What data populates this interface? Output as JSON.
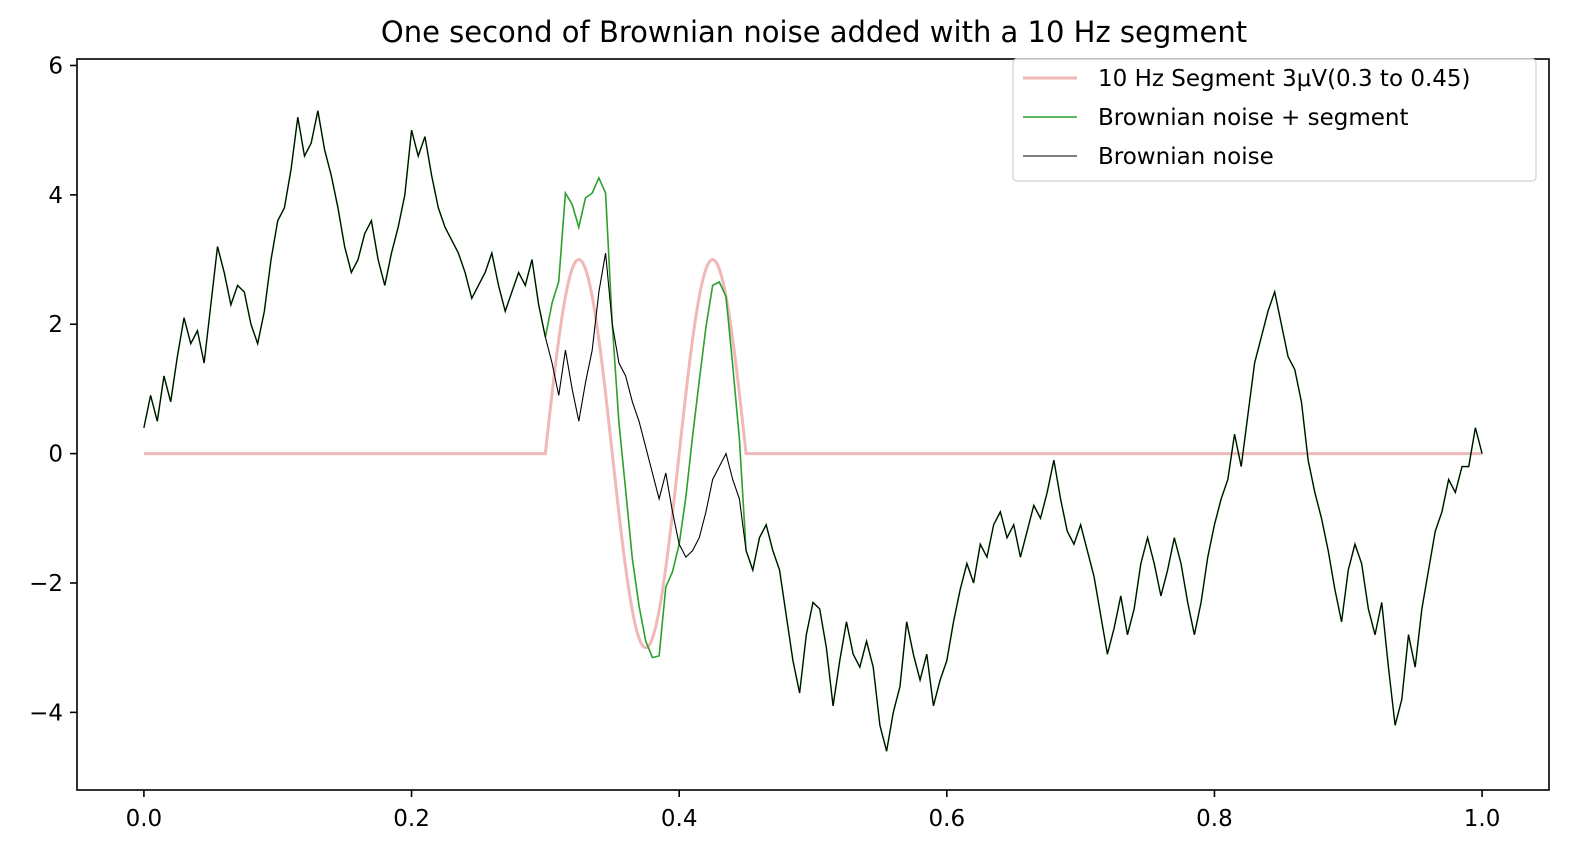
{
  "chart_data": {
    "type": "line",
    "title": "One second of Brownian noise added with a 10 Hz segment",
    "xlabel": "",
    "ylabel": "",
    "xlim": [
      -0.05,
      1.05
    ],
    "ylim": [
      -5.2,
      6.1
    ],
    "xticks": [
      0.0,
      0.2,
      0.4,
      0.6,
      0.8,
      1.0
    ],
    "xtick_labels": [
      "0.0",
      "0.2",
      "0.4",
      "0.6",
      "0.8",
      "1.0"
    ],
    "yticks": [
      -4,
      -2,
      0,
      2,
      4,
      6
    ],
    "ytick_labels": [
      "−4",
      "−2",
      "0",
      "2",
      "4",
      "6"
    ],
    "grid": false,
    "legend_position": "upper right",
    "series": [
      {
        "name": "10 Hz Segment 3μV(0.3 to 0.45)",
        "color": "#f0b8b8",
        "segment_start": 0.3,
        "segment_end": 0.45,
        "frequency_hz": 10,
        "amplitude": 3
      },
      {
        "name": "Brownian noise + segment",
        "color": "#2ca02c"
      },
      {
        "name": "Brownian noise",
        "color": "#000000",
        "points": [
          [
            0.0,
            0.4
          ],
          [
            0.005,
            0.9
          ],
          [
            0.01,
            0.5
          ],
          [
            0.015,
            1.2
          ],
          [
            0.02,
            0.8
          ],
          [
            0.025,
            1.5
          ],
          [
            0.03,
            2.1
          ],
          [
            0.035,
            1.7
          ],
          [
            0.04,
            1.9
          ],
          [
            0.045,
            1.4
          ],
          [
            0.05,
            2.3
          ],
          [
            0.055,
            3.2
          ],
          [
            0.06,
            2.8
          ],
          [
            0.065,
            2.3
          ],
          [
            0.07,
            2.6
          ],
          [
            0.075,
            2.5
          ],
          [
            0.08,
            2.0
          ],
          [
            0.085,
            1.7
          ],
          [
            0.09,
            2.2
          ],
          [
            0.095,
            3.0
          ],
          [
            0.1,
            3.6
          ],
          [
            0.105,
            3.8
          ],
          [
            0.11,
            4.4
          ],
          [
            0.115,
            5.2
          ],
          [
            0.12,
            4.6
          ],
          [
            0.125,
            4.8
          ],
          [
            0.13,
            5.3
          ],
          [
            0.135,
            4.7
          ],
          [
            0.14,
            4.3
          ],
          [
            0.145,
            3.8
          ],
          [
            0.15,
            3.2
          ],
          [
            0.155,
            2.8
          ],
          [
            0.16,
            3.0
          ],
          [
            0.165,
            3.4
          ],
          [
            0.17,
            3.6
          ],
          [
            0.175,
            3.0
          ],
          [
            0.18,
            2.6
          ],
          [
            0.185,
            3.1
          ],
          [
            0.19,
            3.5
          ],
          [
            0.195,
            4.0
          ],
          [
            0.2,
            5.0
          ],
          [
            0.205,
            4.6
          ],
          [
            0.21,
            4.9
          ],
          [
            0.215,
            4.3
          ],
          [
            0.22,
            3.8
          ],
          [
            0.225,
            3.5
          ],
          [
            0.23,
            3.3
          ],
          [
            0.235,
            3.1
          ],
          [
            0.24,
            2.8
          ],
          [
            0.245,
            2.4
          ],
          [
            0.25,
            2.6
          ],
          [
            0.255,
            2.8
          ],
          [
            0.26,
            3.1
          ],
          [
            0.265,
            2.6
          ],
          [
            0.27,
            2.2
          ],
          [
            0.275,
            2.5
          ],
          [
            0.28,
            2.8
          ],
          [
            0.285,
            2.6
          ],
          [
            0.29,
            3.0
          ],
          [
            0.295,
            2.3
          ],
          [
            0.3,
            1.8
          ],
          [
            0.305,
            1.4
          ],
          [
            0.31,
            0.9
          ],
          [
            0.315,
            1.6
          ],
          [
            0.32,
            1.0
          ],
          [
            0.325,
            0.5
          ],
          [
            0.33,
            1.1
          ],
          [
            0.335,
            1.6
          ],
          [
            0.34,
            2.5
          ],
          [
            0.345,
            3.1
          ],
          [
            0.35,
            2.0
          ],
          [
            0.355,
            1.4
          ],
          [
            0.36,
            1.2
          ],
          [
            0.365,
            0.8
          ],
          [
            0.37,
            0.5
          ],
          [
            0.375,
            0.1
          ],
          [
            0.38,
            -0.3
          ],
          [
            0.385,
            -0.7
          ],
          [
            0.39,
            -0.3
          ],
          [
            0.395,
            -0.9
          ],
          [
            0.4,
            -1.4
          ],
          [
            0.405,
            -1.6
          ],
          [
            0.41,
            -1.5
          ],
          [
            0.415,
            -1.3
          ],
          [
            0.42,
            -0.9
          ],
          [
            0.425,
            -0.4
          ],
          [
            0.43,
            -0.2
          ],
          [
            0.435,
            0.0
          ],
          [
            0.44,
            -0.4
          ],
          [
            0.445,
            -0.7
          ],
          [
            0.45,
            -1.5
          ],
          [
            0.455,
            -1.8
          ],
          [
            0.46,
            -1.3
          ],
          [
            0.465,
            -1.1
          ],
          [
            0.47,
            -1.5
          ],
          [
            0.475,
            -1.8
          ],
          [
            0.48,
            -2.5
          ],
          [
            0.485,
            -3.2
          ],
          [
            0.49,
            -3.7
          ],
          [
            0.495,
            -2.8
          ],
          [
            0.5,
            -2.3
          ],
          [
            0.505,
            -2.4
          ],
          [
            0.51,
            -3.0
          ],
          [
            0.515,
            -3.9
          ],
          [
            0.52,
            -3.2
          ],
          [
            0.525,
            -2.6
          ],
          [
            0.53,
            -3.1
          ],
          [
            0.535,
            -3.3
          ],
          [
            0.54,
            -2.9
          ],
          [
            0.545,
            -3.3
          ],
          [
            0.55,
            -4.2
          ],
          [
            0.555,
            -4.6
          ],
          [
            0.56,
            -4.0
          ],
          [
            0.565,
            -3.6
          ],
          [
            0.57,
            -2.6
          ],
          [
            0.575,
            -3.1
          ],
          [
            0.58,
            -3.5
          ],
          [
            0.585,
            -3.1
          ],
          [
            0.59,
            -3.9
          ],
          [
            0.595,
            -3.5
          ],
          [
            0.6,
            -3.2
          ],
          [
            0.605,
            -2.6
          ],
          [
            0.61,
            -2.1
          ],
          [
            0.615,
            -1.7
          ],
          [
            0.62,
            -2.0
          ],
          [
            0.625,
            -1.4
          ],
          [
            0.63,
            -1.6
          ],
          [
            0.635,
            -1.1
          ],
          [
            0.64,
            -0.9
          ],
          [
            0.645,
            -1.3
          ],
          [
            0.65,
            -1.1
          ],
          [
            0.655,
            -1.6
          ],
          [
            0.66,
            -1.2
          ],
          [
            0.665,
            -0.8
          ],
          [
            0.67,
            -1.0
          ],
          [
            0.675,
            -0.6
          ],
          [
            0.68,
            -0.1
          ],
          [
            0.685,
            -0.7
          ],
          [
            0.69,
            -1.2
          ],
          [
            0.695,
            -1.4
          ],
          [
            0.7,
            -1.1
          ],
          [
            0.705,
            -1.5
          ],
          [
            0.71,
            -1.9
          ],
          [
            0.715,
            -2.5
          ],
          [
            0.72,
            -3.1
          ],
          [
            0.725,
            -2.7
          ],
          [
            0.73,
            -2.2
          ],
          [
            0.735,
            -2.8
          ],
          [
            0.74,
            -2.4
          ],
          [
            0.745,
            -1.7
          ],
          [
            0.75,
            -1.3
          ],
          [
            0.755,
            -1.7
          ],
          [
            0.76,
            -2.2
          ],
          [
            0.765,
            -1.8
          ],
          [
            0.77,
            -1.3
          ],
          [
            0.775,
            -1.7
          ],
          [
            0.78,
            -2.3
          ],
          [
            0.785,
            -2.8
          ],
          [
            0.79,
            -2.3
          ],
          [
            0.795,
            -1.6
          ],
          [
            0.8,
            -1.1
          ],
          [
            0.805,
            -0.7
          ],
          [
            0.81,
            -0.4
          ],
          [
            0.815,
            0.3
          ],
          [
            0.82,
            -0.2
          ],
          [
            0.825,
            0.6
          ],
          [
            0.83,
            1.4
          ],
          [
            0.835,
            1.8
          ],
          [
            0.84,
            2.2
          ],
          [
            0.845,
            2.5
          ],
          [
            0.85,
            2.0
          ],
          [
            0.855,
            1.5
          ],
          [
            0.86,
            1.3
          ],
          [
            0.865,
            0.8
          ],
          [
            0.87,
            -0.1
          ],
          [
            0.875,
            -0.6
          ],
          [
            0.88,
            -1.0
          ],
          [
            0.885,
            -1.5
          ],
          [
            0.89,
            -2.1
          ],
          [
            0.895,
            -2.6
          ],
          [
            0.9,
            -1.8
          ],
          [
            0.905,
            -1.4
          ],
          [
            0.91,
            -1.7
          ],
          [
            0.915,
            -2.4
          ],
          [
            0.92,
            -2.8
          ],
          [
            0.925,
            -2.3
          ],
          [
            0.93,
            -3.3
          ],
          [
            0.935,
            -4.2
          ],
          [
            0.94,
            -3.8
          ],
          [
            0.945,
            -2.8
          ],
          [
            0.95,
            -3.3
          ],
          [
            0.955,
            -2.4
          ],
          [
            0.96,
            -1.8
          ],
          [
            0.965,
            -1.2
          ],
          [
            0.97,
            -0.9
          ],
          [
            0.975,
            -0.4
          ],
          [
            0.98,
            -0.6
          ],
          [
            0.985,
            -0.2
          ],
          [
            0.99,
            -0.2
          ],
          [
            0.995,
            0.4
          ],
          [
            1.0,
            0.0
          ]
        ]
      }
    ]
  }
}
